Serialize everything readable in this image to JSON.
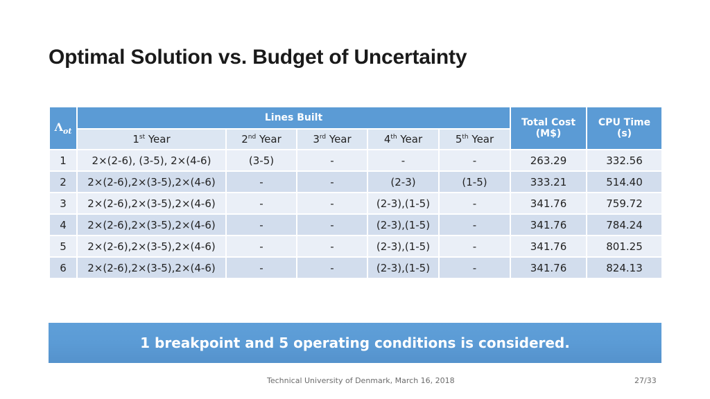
{
  "slide": {
    "title": "Optimal Solution vs. Budget of Uncertainty"
  },
  "table": {
    "lambda_symbol": "Λ",
    "lambda_subscript": "ot",
    "group_header": "Lines Built",
    "total_cost_header_line1": "Total Cost",
    "total_cost_header_line2": "(M$)",
    "cpu_time_header_line1": "CPU Time",
    "cpu_time_header_line2": "(s)",
    "years": [
      {
        "num": "1",
        "suffix": "st",
        "word": "Year"
      },
      {
        "num": "2",
        "suffix": "nd",
        "word": "Year"
      },
      {
        "num": "3",
        "suffix": "rd",
        "word": "Year"
      },
      {
        "num": "4",
        "suffix": "th",
        "word": "Year"
      },
      {
        "num": "5",
        "suffix": "th",
        "word": "Year"
      }
    ],
    "rows": [
      {
        "lambda": "1",
        "y1": "2×(2-6), (3-5), 2×(4-6)",
        "y2": "(3-5)",
        "y3": "-",
        "y4": "-",
        "y5": "-",
        "cost": "263.29",
        "cpu": "332.56"
      },
      {
        "lambda": "2",
        "y1": "2×(2-6),2×(3-5),2×(4-6)",
        "y2": "-",
        "y3": "-",
        "y4": "(2-3)",
        "y5": "(1-5)",
        "cost": "333.21",
        "cpu": "514.40"
      },
      {
        "lambda": "3",
        "y1": "2×(2-6),2×(3-5),2×(4-6)",
        "y2": "-",
        "y3": "-",
        "y4": "(2-3),(1-5)",
        "y5": "-",
        "cost": "341.76",
        "cpu": "759.72"
      },
      {
        "lambda": "4",
        "y1": "2×(2-6),2×(3-5),2×(4-6)",
        "y2": "-",
        "y3": "-",
        "y4": "(2-3),(1-5)",
        "y5": "-",
        "cost": "341.76",
        "cpu": "784.24"
      },
      {
        "lambda": "5",
        "y1": "2×(2-6),2×(3-5),2×(4-6)",
        "y2": "-",
        "y3": "-",
        "y4": "(2-3),(1-5)",
        "y5": "-",
        "cost": "341.76",
        "cpu": "801.25"
      },
      {
        "lambda": "6",
        "y1": "2×(2-6),2×(3-5),2×(4-6)",
        "y2": "-",
        "y3": "-",
        "y4": "(2-3),(1-5)",
        "y5": "-",
        "cost": "341.76",
        "cpu": "824.13"
      }
    ]
  },
  "banner": {
    "text": "1 breakpoint and 5 operating conditions is considered."
  },
  "footer": {
    "center": "Technical University of Denmark, March 16, 2018",
    "page": "27/33"
  },
  "colors": {
    "header_blue": "#5b9bd5",
    "row_light": "#eaeff7",
    "row_dark": "#d2dded",
    "subheader": "#dce6f2"
  }
}
